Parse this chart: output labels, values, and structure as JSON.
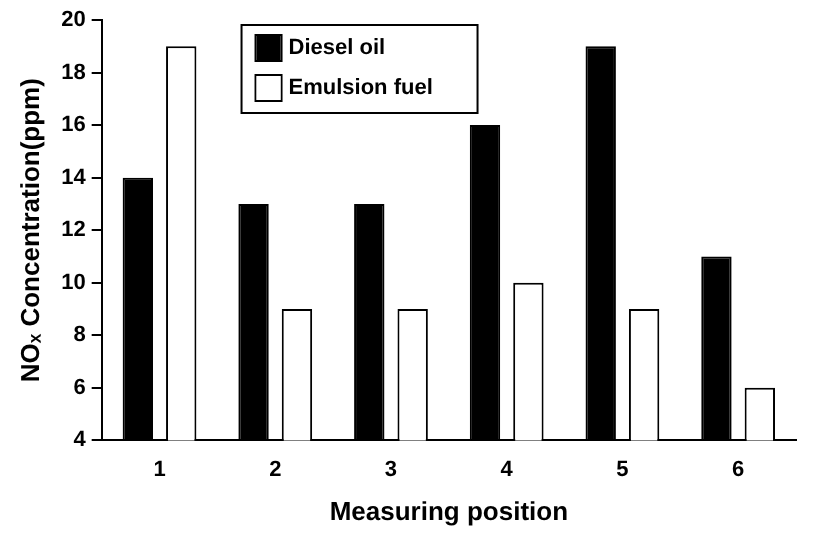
{
  "chart_data": {
    "type": "bar",
    "xlabel": "Measuring position",
    "ylabel": "NOₓ Concentration(ppm)",
    "categories": [
      "1",
      "2",
      "3",
      "4",
      "5",
      "6"
    ],
    "series": [
      {
        "name": "Diesel oil",
        "color": "#000000",
        "values": [
          14,
          13,
          13,
          16,
          19,
          11
        ]
      },
      {
        "name": "Emulsion fuel",
        "color": "#ffffff",
        "values": [
          19,
          9,
          9,
          10,
          9,
          6
        ]
      }
    ],
    "ylim": [
      4,
      20
    ],
    "yticks": [
      4,
      6,
      8,
      10,
      12,
      14,
      16,
      18,
      20
    ],
    "grid": false,
    "legend": "top left"
  }
}
